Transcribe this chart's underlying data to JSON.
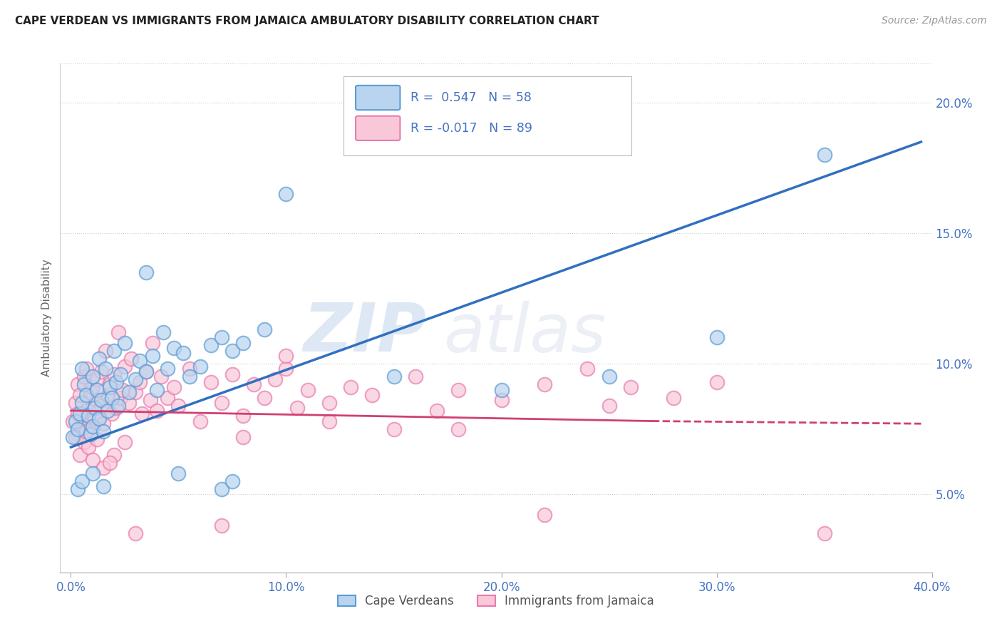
{
  "title": "CAPE VERDEAN VS IMMIGRANTS FROM JAMAICA AMBULATORY DISABILITY CORRELATION CHART",
  "source": "Source: ZipAtlas.com",
  "ylabel": "Ambulatory Disability",
  "x_tick_labels": [
    "0.0%",
    "10.0%",
    "20.0%",
    "30.0%",
    "40.0%"
  ],
  "x_tick_vals": [
    0.0,
    10.0,
    20.0,
    30.0,
    40.0
  ],
  "y_tick_labels": [
    "5.0%",
    "10.0%",
    "15.0%",
    "20.0%"
  ],
  "y_tick_vals": [
    5.0,
    10.0,
    15.0,
    20.0
  ],
  "xlim": [
    -0.5,
    40.0
  ],
  "ylim": [
    2.0,
    21.5
  ],
  "legend_entries": [
    {
      "label": "R =  0.547   N = 58",
      "color": "#a8c8e8"
    },
    {
      "label": "R = -0.017   N = 89",
      "color": "#f4a6c0"
    }
  ],
  "legend_labels_bottom": [
    "Cape Verdeans",
    "Immigrants from Jamaica"
  ],
  "blue_fill_color": "#b8d4ee",
  "blue_edge_color": "#5b9bd5",
  "pink_fill_color": "#f9c8d8",
  "pink_edge_color": "#e87ab0",
  "blue_line_color": "#3070c0",
  "pink_line_color": "#d04070",
  "watermark_zip": "ZIP",
  "watermark_atlas": "atlas",
  "title_fontsize": 11,
  "axis_tick_color": "#4472c4",
  "blue_scatter": [
    [
      0.1,
      7.2
    ],
    [
      0.2,
      7.8
    ],
    [
      0.3,
      7.5
    ],
    [
      0.4,
      8.1
    ],
    [
      0.5,
      8.5
    ],
    [
      0.5,
      9.8
    ],
    [
      0.6,
      9.2
    ],
    [
      0.7,
      8.8
    ],
    [
      0.8,
      8.0
    ],
    [
      0.9,
      7.3
    ],
    [
      1.0,
      7.6
    ],
    [
      1.0,
      9.5
    ],
    [
      1.1,
      8.3
    ],
    [
      1.2,
      9.0
    ],
    [
      1.3,
      7.9
    ],
    [
      1.3,
      10.2
    ],
    [
      1.4,
      8.6
    ],
    [
      1.5,
      7.4
    ],
    [
      1.6,
      9.8
    ],
    [
      1.7,
      8.2
    ],
    [
      1.8,
      9.1
    ],
    [
      1.9,
      8.7
    ],
    [
      2.0,
      10.5
    ],
    [
      2.1,
      9.3
    ],
    [
      2.2,
      8.4
    ],
    [
      2.3,
      9.6
    ],
    [
      2.5,
      10.8
    ],
    [
      2.7,
      8.9
    ],
    [
      3.0,
      9.4
    ],
    [
      3.2,
      10.1
    ],
    [
      3.5,
      9.7
    ],
    [
      3.8,
      10.3
    ],
    [
      4.0,
      9.0
    ],
    [
      4.3,
      11.2
    ],
    [
      4.5,
      9.8
    ],
    [
      4.8,
      10.6
    ],
    [
      5.0,
      5.8
    ],
    [
      5.2,
      10.4
    ],
    [
      5.5,
      9.5
    ],
    [
      6.0,
      9.9
    ],
    [
      6.5,
      10.7
    ],
    [
      7.0,
      11.0
    ],
    [
      7.5,
      10.5
    ],
    [
      8.0,
      10.8
    ],
    [
      9.0,
      11.3
    ],
    [
      0.3,
      5.2
    ],
    [
      0.5,
      5.5
    ],
    [
      1.0,
      5.8
    ],
    [
      1.5,
      5.3
    ],
    [
      10.0,
      16.5
    ],
    [
      3.5,
      13.5
    ],
    [
      7.0,
      5.2
    ],
    [
      7.5,
      5.5
    ],
    [
      15.0,
      9.5
    ],
    [
      20.0,
      9.0
    ],
    [
      25.0,
      9.5
    ],
    [
      30.0,
      11.0
    ],
    [
      35.0,
      18.0
    ]
  ],
  "pink_scatter": [
    [
      0.1,
      7.8
    ],
    [
      0.2,
      8.5
    ],
    [
      0.3,
      7.3
    ],
    [
      0.3,
      9.2
    ],
    [
      0.4,
      8.8
    ],
    [
      0.5,
      7.5
    ],
    [
      0.5,
      8.0
    ],
    [
      0.6,
      9.5
    ],
    [
      0.7,
      8.2
    ],
    [
      0.7,
      9.8
    ],
    [
      0.8,
      7.6
    ],
    [
      0.9,
      8.9
    ],
    [
      1.0,
      8.3
    ],
    [
      1.0,
      9.1
    ],
    [
      1.1,
      7.9
    ],
    [
      1.2,
      9.4
    ],
    [
      1.2,
      8.6
    ],
    [
      1.3,
      8.0
    ],
    [
      1.4,
      9.7
    ],
    [
      1.4,
      8.4
    ],
    [
      1.5,
      7.7
    ],
    [
      1.6,
      10.5
    ],
    [
      1.7,
      8.8
    ],
    [
      1.8,
      9.2
    ],
    [
      1.9,
      8.1
    ],
    [
      2.0,
      9.6
    ],
    [
      2.1,
      8.3
    ],
    [
      2.2,
      11.2
    ],
    [
      2.3,
      8.7
    ],
    [
      2.4,
      9.0
    ],
    [
      2.5,
      9.9
    ],
    [
      2.7,
      8.5
    ],
    [
      2.8,
      10.2
    ],
    [
      3.0,
      8.9
    ],
    [
      3.2,
      9.3
    ],
    [
      3.3,
      8.1
    ],
    [
      3.5,
      9.7
    ],
    [
      3.7,
      8.6
    ],
    [
      3.8,
      10.8
    ],
    [
      4.0,
      8.2
    ],
    [
      4.2,
      9.5
    ],
    [
      4.5,
      8.7
    ],
    [
      4.8,
      9.1
    ],
    [
      5.0,
      8.4
    ],
    [
      5.5,
      9.8
    ],
    [
      6.0,
      7.8
    ],
    [
      6.5,
      9.3
    ],
    [
      7.0,
      8.5
    ],
    [
      7.5,
      9.6
    ],
    [
      8.0,
      8.0
    ],
    [
      8.5,
      9.2
    ],
    [
      9.0,
      8.7
    ],
    [
      9.5,
      9.4
    ],
    [
      10.0,
      9.8
    ],
    [
      10.5,
      8.3
    ],
    [
      11.0,
      9.0
    ],
    [
      12.0,
      8.5
    ],
    [
      13.0,
      9.1
    ],
    [
      14.0,
      8.8
    ],
    [
      15.0,
      7.5
    ],
    [
      16.0,
      9.5
    ],
    [
      17.0,
      8.2
    ],
    [
      18.0,
      9.0
    ],
    [
      20.0,
      8.6
    ],
    [
      22.0,
      9.2
    ],
    [
      24.0,
      9.8
    ],
    [
      25.0,
      8.4
    ],
    [
      26.0,
      9.1
    ],
    [
      28.0,
      8.7
    ],
    [
      30.0,
      9.3
    ],
    [
      0.2,
      7.2
    ],
    [
      0.4,
      6.5
    ],
    [
      0.6,
      7.0
    ],
    [
      0.8,
      6.8
    ],
    [
      1.0,
      6.3
    ],
    [
      1.5,
      6.0
    ],
    [
      2.0,
      6.5
    ],
    [
      1.2,
      7.1
    ],
    [
      2.5,
      7.0
    ],
    [
      8.0,
      7.2
    ],
    [
      12.0,
      7.8
    ],
    [
      18.0,
      7.5
    ],
    [
      3.0,
      3.5
    ],
    [
      7.0,
      3.8
    ],
    [
      22.0,
      4.2
    ],
    [
      35.0,
      3.5
    ],
    [
      10.0,
      10.3
    ],
    [
      0.3,
      8.1
    ],
    [
      0.7,
      7.4
    ],
    [
      1.8,
      6.2
    ]
  ],
  "blue_line": {
    "x0": 0.0,
    "x1": 39.5,
    "y0": 6.8,
    "y1": 18.5
  },
  "pink_line_solid": {
    "x0": 0.0,
    "x1": 27.0,
    "y0": 8.2,
    "y1": 7.8
  },
  "pink_line_dash": {
    "x0": 27.0,
    "x1": 39.5,
    "y0": 7.8,
    "y1": 7.7
  }
}
